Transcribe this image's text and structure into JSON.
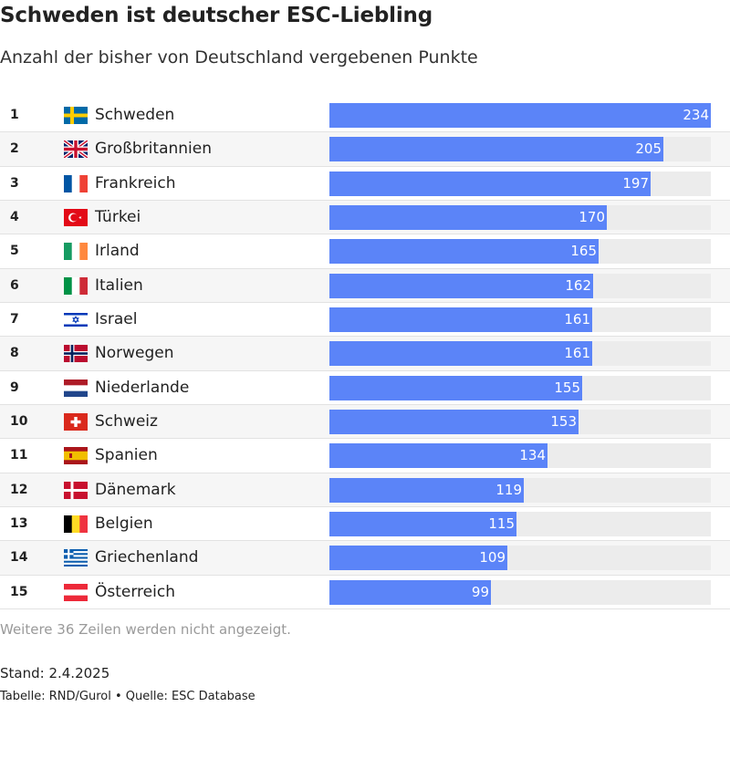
{
  "chart_data": {
    "type": "bar",
    "orientation": "horizontal",
    "title": "Schweden ist deutscher ESC-Liebling",
    "subtitle": "Anzahl der bisher von Deutschland vergebenen Punkte",
    "xlim": [
      0,
      234
    ],
    "categories": [
      "Schweden",
      "Großbritannien",
      "Frankreich",
      "Türkei",
      "Irland",
      "Italien",
      "Israel",
      "Norwegen",
      "Niederlande",
      "Schweiz",
      "Spanien",
      "Dänemark",
      "Belgien",
      "Griechenland",
      "Österreich"
    ],
    "values": [
      234,
      205,
      197,
      170,
      165,
      162,
      161,
      161,
      155,
      153,
      134,
      119,
      115,
      109,
      99
    ],
    "ranks": [
      "1",
      "2",
      "3",
      "4",
      "5",
      "6",
      "7",
      "8",
      "9",
      "10",
      "11",
      "12",
      "13",
      "14",
      "15"
    ],
    "flags": [
      "flag-sweden-icon",
      "flag-uk-icon",
      "flag-france-icon",
      "flag-turkey-icon",
      "flag-ireland-icon",
      "flag-italy-icon",
      "flag-israel-icon",
      "flag-norway-icon",
      "flag-netherlands-icon",
      "flag-switzerland-icon",
      "flag-spain-icon",
      "flag-denmark-icon",
      "flag-belgium-icon",
      "flag-greece-icon",
      "flag-austria-icon"
    ],
    "bar_color": "#5b84f8",
    "track_color": "#ececec",
    "grid": false
  },
  "footer": {
    "note": "Weitere 36 Zeilen werden nicht angezeigt.",
    "stand": "Stand: 2.4.2025",
    "source": "Tabelle: RND/Gurol • Quelle: ESC Database"
  }
}
